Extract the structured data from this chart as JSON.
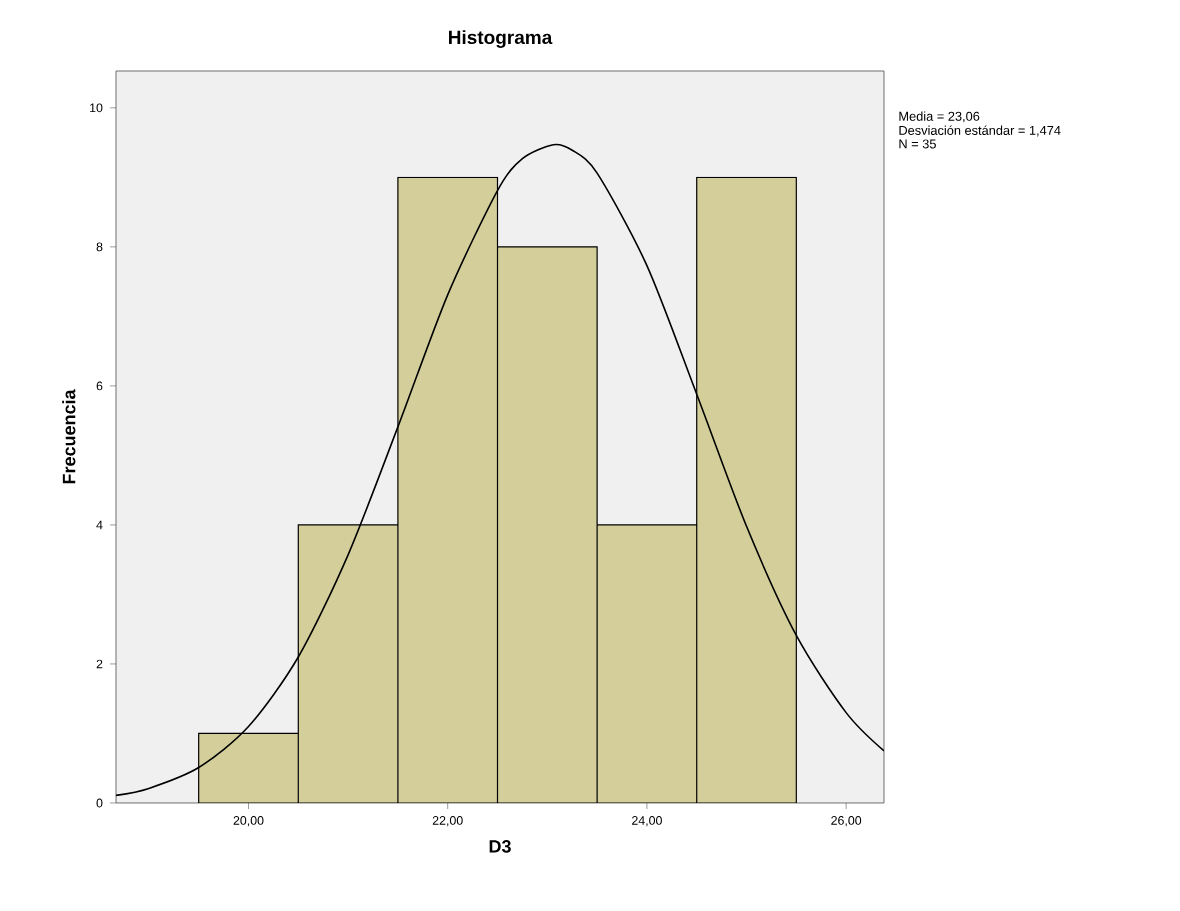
{
  "chart_data": {
    "type": "histogram",
    "title": "Histograma",
    "xlabel": "D3",
    "ylabel": "Frecuencia",
    "bins": [
      19.5,
      20.5,
      21.5,
      22.5,
      23.5,
      24.5,
      25.5
    ],
    "values": [
      1,
      4,
      9,
      8,
      4,
      9
    ],
    "color": "#d3ce9a",
    "series": [
      {
        "type": "line",
        "color": "#000000",
        "x": [
          18.67,
          19.0,
          19.5,
          20.0,
          20.5,
          21.0,
          21.5,
          22.0,
          22.5,
          22.75,
          23.06,
          23.25,
          23.5,
          24.0,
          24.5,
          25.0,
          25.5,
          26.0,
          26.38
        ],
        "values": [
          0.11,
          0.21,
          0.51,
          1.1,
          2.1,
          3.57,
          5.41,
          7.31,
          8.81,
          9.27,
          9.47,
          9.39,
          9.06,
          7.73,
          5.88,
          3.98,
          2.41,
          1.3,
          0.75
        ]
      }
    ],
    "xlim": [
      18.67,
      26.38
    ],
    "ylim": [
      0,
      10.53
    ],
    "xticks": [
      {
        "value": 20,
        "label": "20,00"
      },
      {
        "value": 22,
        "label": "22,00"
      },
      {
        "value": 24,
        "label": "24,00"
      },
      {
        "value": 26,
        "label": "26,00"
      }
    ],
    "yticks": [
      0,
      2,
      4,
      6,
      8,
      10
    ],
    "annotations": [
      "Media = 23,06",
      "Desviación estándar = 1,474",
      "N = 35"
    ],
    "grid": false
  }
}
